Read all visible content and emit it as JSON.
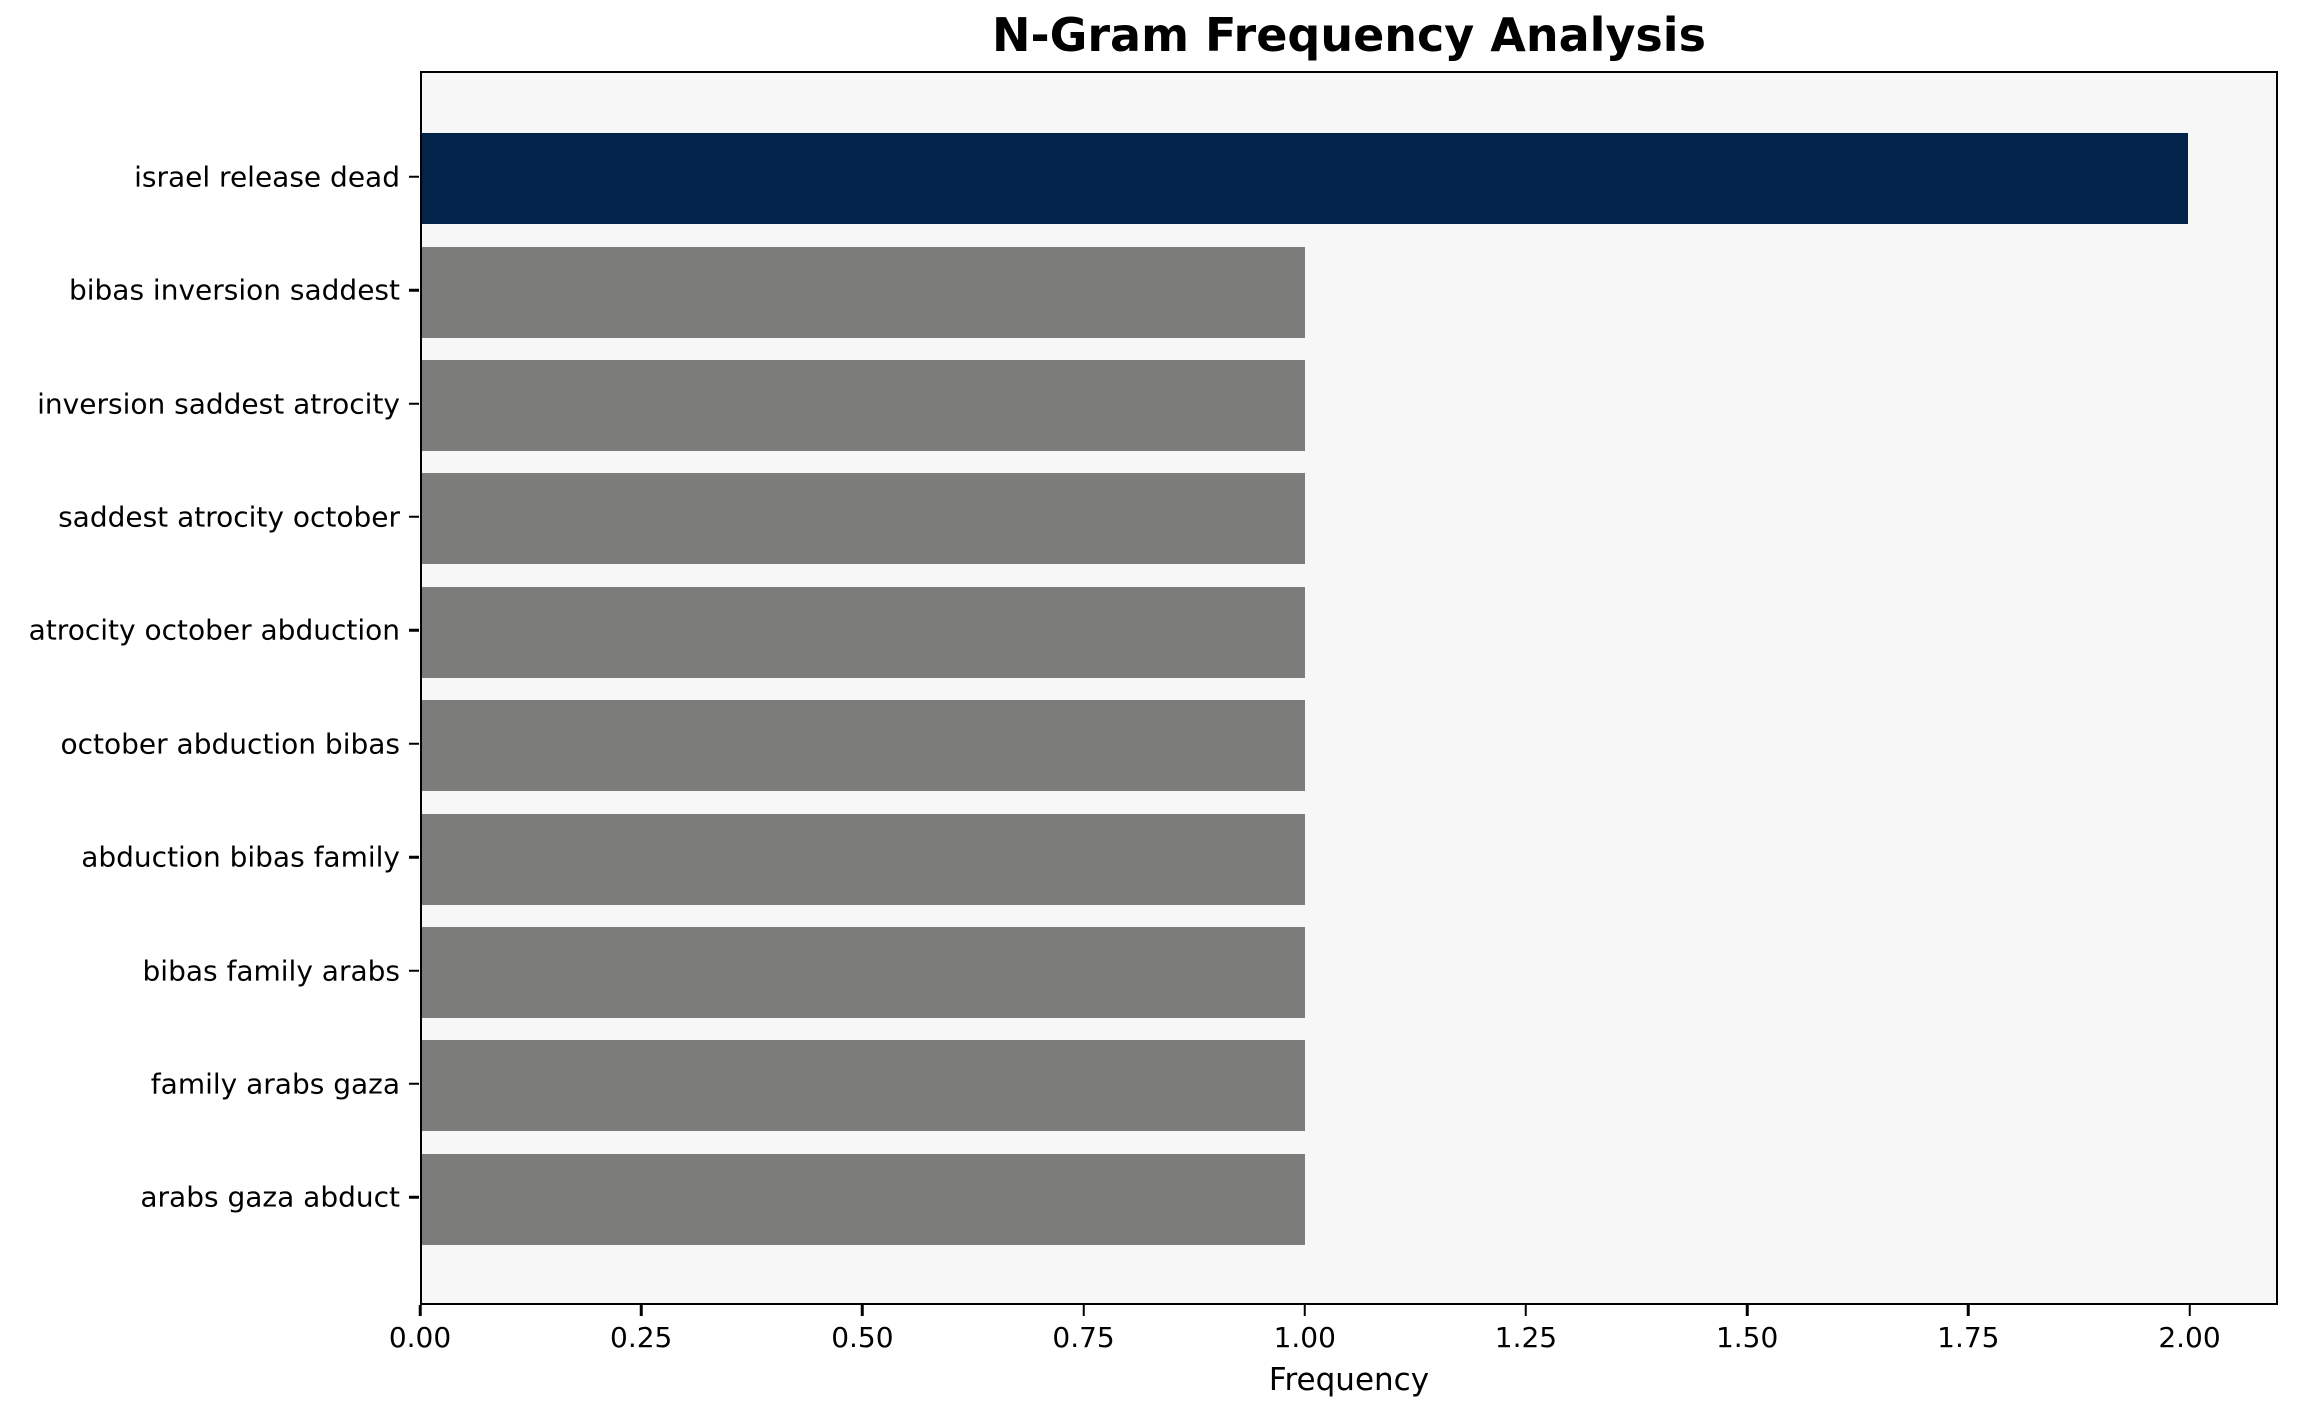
{
  "chart_data": {
    "type": "bar",
    "orientation": "horizontal",
    "title": "N-Gram Frequency Analysis",
    "xlabel": "Frequency",
    "ylabel": "",
    "categories": [
      "israel release dead",
      "bibas inversion saddest",
      "inversion saddest atrocity",
      "saddest atrocity october",
      "atrocity october abduction",
      "october abduction bibas",
      "abduction bibas family",
      "bibas family arabs",
      "family arabs gaza",
      "arabs gaza abduct"
    ],
    "values": [
      2.0,
      1.0,
      1.0,
      1.0,
      1.0,
      1.0,
      1.0,
      1.0,
      1.0,
      1.0
    ],
    "bar_colors": [
      "#03234b",
      "#7c7c7a",
      "#7c7c7a",
      "#7c7c7a",
      "#7c7c7a",
      "#7c7c7a",
      "#7c7c7a",
      "#7c7c7a",
      "#7c7c7a",
      "#7c7c7a"
    ],
    "xlim": [
      0,
      2.1
    ],
    "xticks": [
      "0.00",
      "0.25",
      "0.50",
      "0.75",
      "1.00",
      "1.25",
      "1.50",
      "1.75",
      "2.00"
    ],
    "grid": false,
    "legend": null,
    "colors": {
      "highlight_bar": "#03234b",
      "default_bar": "#7c7c7a",
      "axes_background": "#f7f7f7",
      "figure_background": "#ffffff",
      "spine": "#000000",
      "text": "#000000"
    }
  }
}
